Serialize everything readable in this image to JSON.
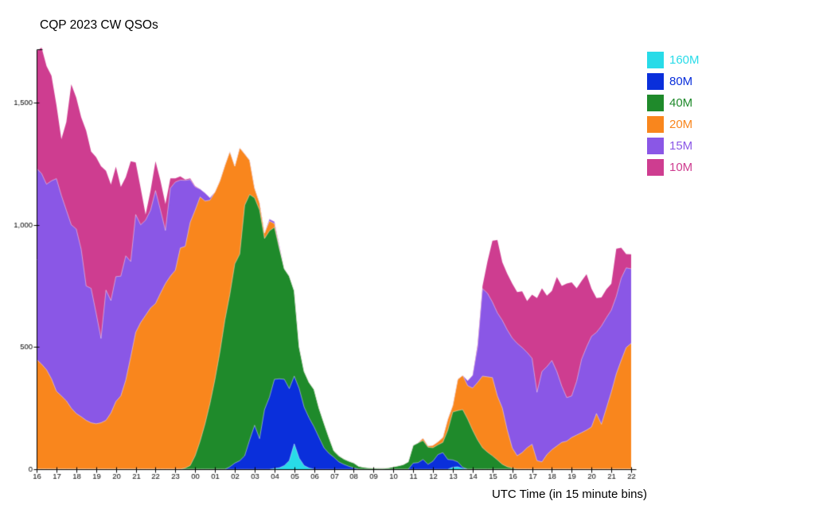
{
  "chart_data": {
    "type": "area",
    "stacked": true,
    "title": "CQP 2023 CW QSOs",
    "xlabel": "UTC Time (in 15 minute bins)",
    "ylabel": "",
    "bin_minutes": 15,
    "x_start": "16:00 UTC day 1",
    "x_end": "22:00 UTC day 2",
    "ylim": [
      0,
      1718
    ],
    "grid": false,
    "legend_position": "top-right",
    "x_hour_labels": [
      "16",
      "17",
      "18",
      "19",
      "20",
      "21",
      "22",
      "23",
      "00",
      "01",
      "02",
      "03",
      "04",
      "05",
      "06",
      "07",
      "08",
      "09",
      "10",
      "11",
      "12",
      "13",
      "14",
      "15",
      "16",
      "17",
      "18",
      "19",
      "20",
      "21",
      "22"
    ],
    "yticks": [
      {
        "value": 0,
        "label": "0"
      },
      {
        "value": 500,
        "label": "500"
      },
      {
        "value": 1000,
        "label": "1,000"
      },
      {
        "value": 1500,
        "label": "1,500"
      }
    ],
    "series": [
      {
        "name": "160M",
        "color": "#28DBE8",
        "values": [
          0,
          0,
          0,
          0,
          0,
          0,
          0,
          0,
          0,
          0,
          0,
          0,
          0,
          0,
          0,
          0,
          0,
          0,
          0,
          0,
          0,
          0,
          0,
          0,
          0,
          0,
          0,
          0,
          0,
          0,
          0,
          0,
          0,
          0,
          0,
          0,
          0,
          0,
          0,
          0,
          0,
          0,
          0,
          0,
          0,
          0,
          0,
          0,
          3,
          6,
          15,
          35,
          104,
          45,
          15,
          5,
          0,
          0,
          0,
          0,
          0,
          0,
          0,
          0,
          0,
          0,
          0,
          0,
          0,
          0,
          0,
          0,
          0,
          0,
          0,
          0,
          0,
          0,
          0,
          0,
          0,
          0,
          0,
          0,
          8,
          10,
          3,
          0,
          0,
          0,
          0,
          0,
          0,
          0,
          0,
          0,
          0,
          0,
          0,
          0,
          0,
          0,
          0,
          0,
          0,
          0,
          0,
          0,
          0,
          0,
          0,
          0,
          0,
          0,
          0,
          0,
          0,
          0,
          0,
          0,
          0
        ]
      },
      {
        "name": "80M",
        "color": "#0A2FDB",
        "values": [
          0,
          0,
          0,
          0,
          0,
          0,
          0,
          0,
          0,
          0,
          0,
          0,
          0,
          0,
          0,
          0,
          0,
          0,
          0,
          0,
          0,
          0,
          0,
          0,
          0,
          0,
          0,
          0,
          0,
          0,
          0,
          0,
          0,
          0,
          0,
          0,
          0,
          0,
          0,
          10,
          25,
          35,
          55,
          120,
          180,
          125,
          244,
          295,
          365,
          364,
          353,
          295,
          277,
          285,
          239,
          205,
          173,
          130,
          88,
          65,
          49,
          30,
          20,
          12,
          6,
          0,
          0,
          0,
          0,
          0,
          0,
          0,
          0,
          0,
          0,
          0,
          25,
          27,
          40,
          20,
          33,
          60,
          68,
          40,
          30,
          20,
          5,
          0,
          0,
          0,
          0,
          0,
          0,
          0,
          0,
          0,
          0,
          0,
          0,
          0,
          0,
          0,
          0,
          0,
          0,
          0,
          0,
          0,
          0,
          0,
          0,
          0,
          0,
          0,
          0,
          0,
          0,
          0,
          0,
          0,
          0
        ]
      },
      {
        "name": "40M",
        "color": "#1F8A2B",
        "values": [
          0,
          0,
          0,
          0,
          0,
          0,
          0,
          0,
          0,
          0,
          0,
          0,
          0,
          0,
          0,
          0,
          0,
          0,
          0,
          0,
          0,
          0,
          0,
          0,
          0,
          0,
          0,
          0,
          0,
          0,
          5,
          15,
          55,
          115,
          186,
          270,
          368,
          480,
          610,
          705,
          815,
          845,
          1025,
          1004,
          930,
          935,
          700,
          680,
          622,
          532,
          452,
          460,
          349,
          170,
          146,
          145,
          153,
          120,
          101,
          65,
          26,
          25,
          22,
          21,
          20,
          12,
          8,
          6,
          5,
          4,
          4,
          6,
          10,
          14,
          19,
          30,
          73,
          81,
          77,
          70,
          55,
          40,
          42,
          120,
          196,
          210,
          236,
          205,
          160,
          120,
          88,
          70,
          55,
          38,
          20,
          10,
          5,
          0,
          0,
          0,
          0,
          0,
          0,
          0,
          0,
          0,
          0,
          0,
          0,
          0,
          0,
          0,
          0,
          0,
          0,
          0,
          0,
          0,
          0,
          0,
          0
        ]
      },
      {
        "name": "20M",
        "color": "#F9861D",
        "values": [
          449,
          430,
          407,
          370,
          319,
          300,
          280,
          250,
          228,
          215,
          200,
          190,
          186,
          190,
          200,
          230,
          277,
          300,
          365,
          460,
          560,
          600,
          630,
          660,
          678,
          720,
          760,
          790,
          814,
          905,
          907,
          995,
          1005,
          999,
          911,
          831,
          766,
          700,
          633,
          585,
          400,
          435,
          210,
          140,
          40,
          30,
          22,
          40,
          15,
          5,
          0,
          0,
          0,
          0,
          0,
          0,
          0,
          0,
          0,
          0,
          0,
          0,
          0,
          0,
          0,
          0,
          0,
          0,
          0,
          0,
          0,
          0,
          0,
          0,
          0,
          0,
          0,
          0,
          10,
          5,
          10,
          12,
          20,
          45,
          27,
          128,
          140,
          137,
          172,
          235,
          293,
          308,
          320,
          262,
          230,
          150,
          82,
          55,
          68,
          88,
          102,
          35,
          30,
          60,
          80,
          95,
          110,
          115,
          130,
          140,
          150,
          160,
          173,
          228,
          184,
          250,
          316,
          390,
          446,
          498,
          515
        ]
      },
      {
        "name": "15M",
        "color": "#8A57E6",
        "values": [
          782,
          780,
          759,
          810,
          870,
          820,
          780,
          750,
          755,
          685,
          550,
          550,
          454,
          345,
          533,
          460,
          511,
          490,
          508,
          390,
          482,
          400,
          389,
          400,
          462,
          340,
          217,
          360,
          361,
          278,
          270,
          175,
          95,
          32,
          33,
          9,
          0,
          0,
          0,
          0,
          0,
          0,
          0,
          0,
          0,
          0,
          0,
          8,
          8,
          8,
          0,
          0,
          0,
          0,
          0,
          0,
          0,
          0,
          0,
          0,
          0,
          0,
          0,
          0,
          0,
          0,
          0,
          0,
          0,
          0,
          0,
          0,
          0,
          0,
          0,
          0,
          0,
          0,
          0,
          0,
          0,
          0,
          0,
          0,
          0,
          0,
          0,
          20,
          52,
          145,
          358,
          342,
          309,
          340,
          359,
          410,
          450,
          460,
          430,
          390,
          352,
          280,
          370,
          360,
          365,
          305,
          230,
          178,
          170,
          220,
          300,
          340,
          371,
          332,
          402,
          370,
          335,
          317,
          336,
          326,
          305
        ]
      },
      {
        "name": "10M",
        "color": "#CE3D90",
        "values": [
          479,
          515,
          484,
          430,
          301,
          230,
          360,
          575,
          537,
          540,
          635,
          560,
          637,
          705,
          488,
          475,
          450,
          365,
          322,
          410,
          213,
          150,
          23,
          80,
          120,
          120,
          108,
          40,
          15,
          15,
          3,
          5,
          3,
          0,
          0,
          0,
          0,
          0,
          0,
          0,
          0,
          0,
          0,
          0,
          0,
          0,
          0,
          0,
          0,
          0,
          0,
          0,
          0,
          0,
          0,
          0,
          0,
          0,
          0,
          0,
          0,
          0,
          0,
          0,
          0,
          0,
          0,
          0,
          0,
          0,
          0,
          0,
          0,
          0,
          0,
          0,
          0,
          0,
          0,
          0,
          0,
          0,
          0,
          0,
          0,
          0,
          0,
          0,
          0,
          10,
          10,
          130,
          251,
          298,
          238,
          230,
          223,
          210,
          230,
          210,
          260,
          385,
          340,
          290,
          285,
          387,
          410,
          467,
          465,
          380,
          320,
          298,
          195,
          140,
          117,
          116,
          108,
          195,
          124,
          56,
          59
        ]
      }
    ]
  },
  "legend": {
    "items": [
      {
        "label": "160M",
        "color": "#28DBE8"
      },
      {
        "label": "80M",
        "color": "#0A2FDB"
      },
      {
        "label": "40M",
        "color": "#1F8A2B"
      },
      {
        "label": "20M",
        "color": "#F9861D"
      },
      {
        "label": "15M",
        "color": "#8A57E6"
      },
      {
        "label": "10M",
        "color": "#CE3D90"
      }
    ]
  }
}
